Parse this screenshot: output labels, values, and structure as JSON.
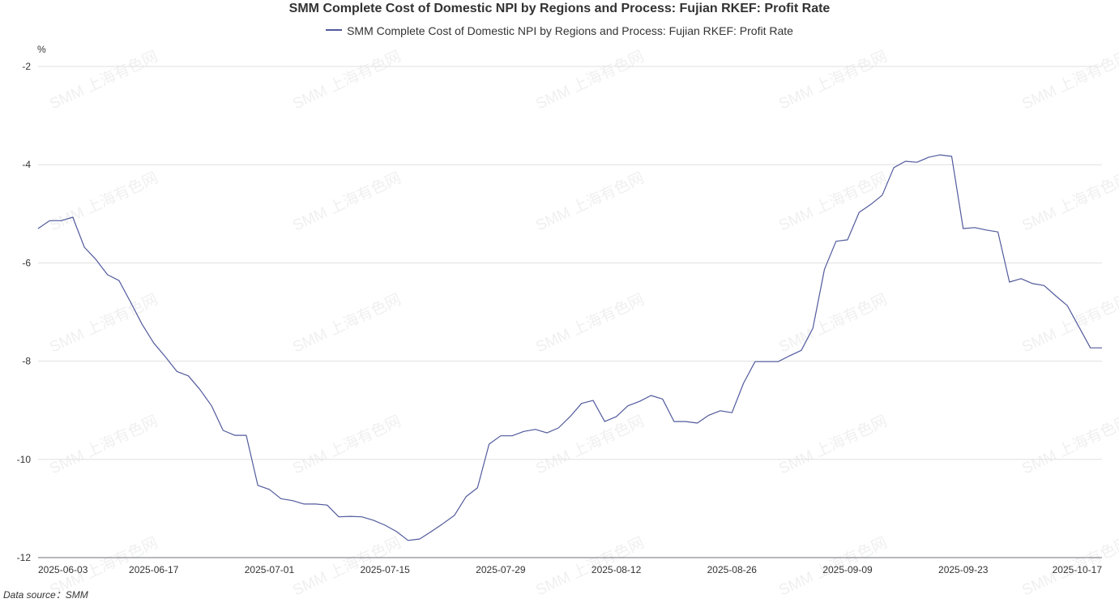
{
  "chart_data": {
    "type": "line",
    "title": "SMM Complete Cost of Domestic NPI by Regions and Process: Fujian RKEF: Profit Rate",
    "ylabel": "%",
    "xlabel": "",
    "ylim": [
      -12,
      -2
    ],
    "yticks": [
      -2,
      -4,
      -6,
      -8,
      -10,
      -12
    ],
    "grid": true,
    "legend_position": "top-center",
    "xticks": [
      {
        "index": 0,
        "label": "2025-06-03"
      },
      {
        "index": 10,
        "label": "2025-06-17"
      },
      {
        "index": 20,
        "label": "2025-07-01"
      },
      {
        "index": 30,
        "label": "2025-07-15"
      },
      {
        "index": 40,
        "label": "2025-07-29"
      },
      {
        "index": 50,
        "label": "2025-08-12"
      },
      {
        "index": 60,
        "label": "2025-08-26"
      },
      {
        "index": 70,
        "label": "2025-09-09"
      },
      {
        "index": 80,
        "label": "2025-09-23"
      },
      {
        "index": 92,
        "label": "2025-10-17"
      }
    ],
    "series": [
      {
        "name": "SMM Complete Cost of Domestic NPI by Regions and Process: Fujian RKEF: Profit Rate",
        "color": "#515a9c",
        "values": [
          -5.3,
          -5.14,
          -5.14,
          -5.07,
          -5.68,
          -5.93,
          -6.24,
          -6.36,
          -6.8,
          -7.25,
          -7.63,
          -7.91,
          -8.21,
          -8.3,
          -8.58,
          -8.91,
          -9.41,
          -9.51,
          -9.51,
          -10.53,
          -10.61,
          -10.8,
          -10.84,
          -10.91,
          -10.91,
          -10.93,
          -11.17,
          -11.16,
          -11.17,
          -11.24,
          -11.34,
          -11.47,
          -11.65,
          -11.62,
          -11.47,
          -11.31,
          -11.14,
          -10.76,
          -10.58,
          -9.69,
          -9.52,
          -9.52,
          -9.43,
          -9.39,
          -9.46,
          -9.36,
          -9.13,
          -8.86,
          -8.8,
          -9.23,
          -9.13,
          -8.91,
          -8.82,
          -8.7,
          -8.77,
          -9.23,
          -9.23,
          -9.26,
          -9.1,
          -9.01,
          -9.05,
          -8.45,
          -8.01,
          -8.01,
          -8.01,
          -7.89,
          -7.78,
          -7.33,
          -6.13,
          -5.56,
          -5.53,
          -4.97,
          -4.81,
          -4.62,
          -4.06,
          -3.93,
          -3.95,
          -3.85,
          -3.8,
          -3.83,
          -5.3,
          -5.28,
          -5.33,
          -5.37,
          -6.39,
          -6.32,
          -6.42,
          -6.46,
          -6.67,
          -6.87,
          -7.3,
          -7.73,
          -7.73
        ]
      }
    ]
  },
  "unit_label": "%",
  "watermark": "SMM 上海有色网",
  "data_source": "Data source：SMM"
}
